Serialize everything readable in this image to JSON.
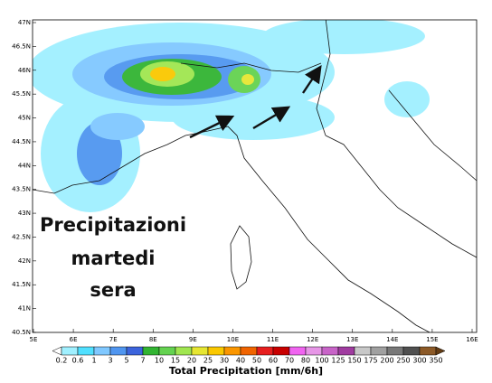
{
  "map": {
    "lat_labels": [
      "47N",
      "46.5N",
      "46N",
      "45.5N",
      "45N",
      "44.5N",
      "44N",
      "43.5N",
      "43N",
      "42.5N",
      "42N",
      "41.5N",
      "41N",
      "40.5N"
    ],
    "lon_labels": [
      "5E",
      "6E",
      "7E",
      "8E",
      "9E",
      "10E",
      "11E",
      "12E",
      "13E",
      "14E",
      "15E",
      "16E"
    ],
    "annotation": [
      "Precipitazioni",
      "martedi",
      "sera"
    ]
  },
  "colorbar": {
    "ticks": [
      0.2,
      0.6,
      1,
      3,
      5,
      7,
      10,
      15,
      20,
      25,
      30,
      40,
      50,
      60,
      70,
      80,
      100,
      125,
      150,
      175,
      200,
      250,
      300,
      350
    ],
    "colors": [
      "#ffffff",
      "#a0f0ff",
      "#50e0ff",
      "#80c8ff",
      "#5096f0",
      "#3c64dc",
      "#32b432",
      "#64d250",
      "#a0e650",
      "#e6e632",
      "#fac800",
      "#fa9600",
      "#f06400",
      "#e61e1e",
      "#c80000",
      "#f064f0",
      "#e696e6",
      "#c864c8",
      "#a03ca0",
      "#c8c8c8",
      "#a0a0a0",
      "#787878",
      "#505050",
      "#8c5a28",
      "#643c14"
    ],
    "title": "Total Precipitation [mm/6h]"
  }
}
